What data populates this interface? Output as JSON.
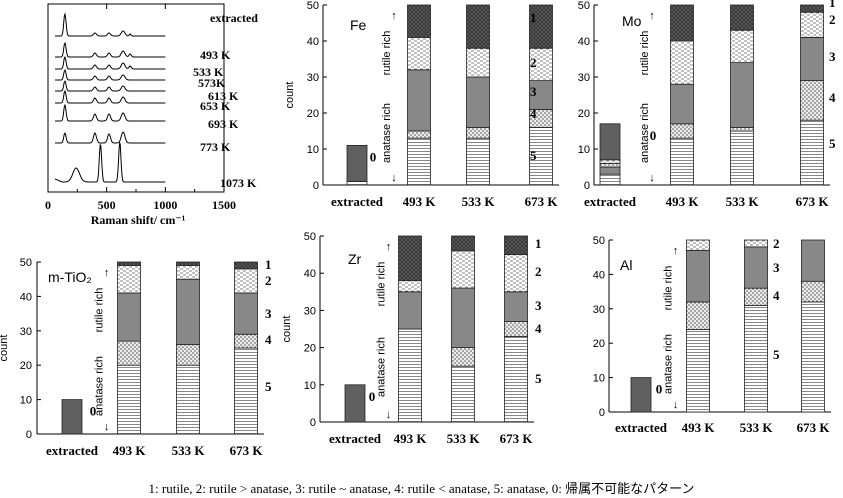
{
  "caption": "1: rutile, 2: rutile > anatase, 3: rutile ~ anatase, 4: rutile < anatase, 5: anatase, 0:  帰属不可能なパターン",
  "colors": {
    "class1": "#5a5a5a",
    "class2": "#ffffff",
    "class3": "#888888",
    "class4": "#e6e6e6",
    "class5": "#ffffff",
    "class0": "#606060"
  },
  "chart_data": [
    {
      "type": "line",
      "title": "",
      "xlabel": "Raman shift/ cm⁻¹",
      "ylabel": "",
      "xlim": [
        0,
        1500
      ],
      "xticks": [
        "0",
        "500",
        "1000",
        "1500"
      ],
      "series": [
        {
          "name": "extracted"
        },
        {
          "name": "493 K"
        },
        {
          "name": "533 K"
        },
        {
          "name": "573K"
        },
        {
          "name": "613 K"
        },
        {
          "name": "653 K"
        },
        {
          "name": "693 K"
        },
        {
          "name": "773 K"
        },
        {
          "name": "1073 K"
        }
      ]
    },
    {
      "type": "bar",
      "stacked": true,
      "label": "Fe",
      "categories": [
        "extracted",
        "493 K",
        "533 K",
        "673 K"
      ],
      "ylabel": "count",
      "ylim": [
        0,
        50
      ],
      "yticks": [
        0,
        10,
        20,
        30,
        40,
        50
      ],
      "extracted": [
        {
          "cls": "5",
          "value": 1
        },
        {
          "cls": "0",
          "value": 10
        }
      ],
      "stacks": [
        [
          {
            "cls": "5",
            "value": 13
          },
          {
            "cls": "4",
            "value": 2
          },
          {
            "cls": "3",
            "value": 17
          },
          {
            "cls": "2",
            "value": 9
          },
          {
            "cls": "1",
            "value": 9
          }
        ],
        [
          {
            "cls": "5",
            "value": 13
          },
          {
            "cls": "4",
            "value": 3
          },
          {
            "cls": "3",
            "value": 14
          },
          {
            "cls": "2",
            "value": 8
          },
          {
            "cls": "1",
            "value": 12
          }
        ],
        [
          {
            "cls": "5",
            "value": 16
          },
          {
            "cls": "4",
            "value": 5
          },
          {
            "cls": "3",
            "value": 8
          },
          {
            "cls": "2",
            "value": 9
          },
          {
            "cls": "1",
            "value": 12
          }
        ]
      ],
      "side_top": "rutile rich",
      "side_bottom": "anatase rich",
      "class_labels": [
        "1",
        "2",
        "3",
        "4",
        "5"
      ],
      "zero_label": "0"
    },
    {
      "type": "bar",
      "stacked": true,
      "label": "Mo",
      "categories": [
        "extracted",
        "493 K",
        "533 K",
        "673 K"
      ],
      "ylabel": "",
      "ylim": [
        0,
        50
      ],
      "yticks": [
        0,
        10,
        20,
        30,
        40,
        50
      ],
      "extracted": [
        {
          "cls": "5",
          "value": 3
        },
        {
          "cls": "3",
          "value": 2
        },
        {
          "cls": "4",
          "value": 1
        },
        {
          "cls": "2",
          "value": 1
        },
        {
          "cls": "0",
          "value": 10
        }
      ],
      "stacks": [
        [
          {
            "cls": "5",
            "value": 13
          },
          {
            "cls": "4",
            "value": 4
          },
          {
            "cls": "3",
            "value": 11
          },
          {
            "cls": "2",
            "value": 12
          },
          {
            "cls": "1",
            "value": 10
          }
        ],
        [
          {
            "cls": "5",
            "value": 15
          },
          {
            "cls": "4",
            "value": 1
          },
          {
            "cls": "3",
            "value": 18
          },
          {
            "cls": "2",
            "value": 9
          },
          {
            "cls": "1",
            "value": 7
          }
        ],
        [
          {
            "cls": "5",
            "value": 18
          },
          {
            "cls": "4",
            "value": 11
          },
          {
            "cls": "3",
            "value": 12
          },
          {
            "cls": "2",
            "value": 7
          },
          {
            "cls": "1",
            "value": 2
          }
        ]
      ],
      "side_top": "rutile rich",
      "side_bottom": "anatase rich",
      "class_labels": [
        "1",
        "2",
        "3",
        "4",
        "5"
      ],
      "zero_label": "0"
    },
    {
      "type": "bar",
      "stacked": true,
      "label": "m-TiO₂",
      "categories": [
        "extracted",
        "493 K",
        "533 K",
        "673 K"
      ],
      "ylabel": "count",
      "ylim": [
        0,
        50
      ],
      "yticks": [
        0,
        10,
        20,
        30,
        40,
        50
      ],
      "extracted": [
        {
          "cls": "0",
          "value": 10
        }
      ],
      "stacks": [
        [
          {
            "cls": "5",
            "value": 20
          },
          {
            "cls": "4",
            "value": 7
          },
          {
            "cls": "3",
            "value": 14
          },
          {
            "cls": "2",
            "value": 8
          },
          {
            "cls": "1",
            "value": 1
          }
        ],
        [
          {
            "cls": "5",
            "value": 20
          },
          {
            "cls": "4",
            "value": 6
          },
          {
            "cls": "3",
            "value": 19
          },
          {
            "cls": "2",
            "value": 4
          },
          {
            "cls": "1",
            "value": 1
          }
        ],
        [
          {
            "cls": "5",
            "value": 25
          },
          {
            "cls": "4",
            "value": 4
          },
          {
            "cls": "3",
            "value": 12
          },
          {
            "cls": "2",
            "value": 7
          },
          {
            "cls": "1",
            "value": 2
          }
        ]
      ],
      "side_top": "rutile rich",
      "side_bottom": "anatase rich",
      "class_labels": [
        "1",
        "2",
        "3",
        "4",
        "5"
      ],
      "zero_label": "0"
    },
    {
      "type": "bar",
      "stacked": true,
      "label": "Zr",
      "categories": [
        "extracted",
        "493 K",
        "533 K",
        "673 K"
      ],
      "ylabel": "count",
      "ylim": [
        0,
        50
      ],
      "yticks": [
        0,
        10,
        20,
        30,
        40,
        50
      ],
      "extracted": [
        {
          "cls": "0",
          "value": 10
        }
      ],
      "stacks": [
        [
          {
            "cls": "5",
            "value": 25
          },
          {
            "cls": "4",
            "value": 0
          },
          {
            "cls": "3",
            "value": 10
          },
          {
            "cls": "2",
            "value": 3
          },
          {
            "cls": "1",
            "value": 12
          }
        ],
        [
          {
            "cls": "5",
            "value": 15
          },
          {
            "cls": "4",
            "value": 5
          },
          {
            "cls": "3",
            "value": 16
          },
          {
            "cls": "2",
            "value": 10
          },
          {
            "cls": "1",
            "value": 4
          }
        ],
        [
          {
            "cls": "5",
            "value": 23
          },
          {
            "cls": "4",
            "value": 4
          },
          {
            "cls": "3",
            "value": 8
          },
          {
            "cls": "2",
            "value": 10
          },
          {
            "cls": "1",
            "value": 5
          }
        ]
      ],
      "side_top": "rutile rich",
      "side_bottom": "anatase rich",
      "class_labels": [
        "1",
        "2",
        "3",
        "4",
        "5"
      ],
      "zero_label": "0"
    },
    {
      "type": "bar",
      "stacked": true,
      "label": "Al",
      "categories": [
        "extracted",
        "493 K",
        "533 K",
        "673 K"
      ],
      "ylabel": "",
      "ylim": [
        0,
        50
      ],
      "yticks": [
        0,
        10,
        20,
        30,
        40,
        50
      ],
      "extracted": [
        {
          "cls": "0",
          "value": 10
        }
      ],
      "stacks": [
        [
          {
            "cls": "5",
            "value": 24
          },
          {
            "cls": "4",
            "value": 8
          },
          {
            "cls": "3",
            "value": 15
          },
          {
            "cls": "2",
            "value": 3
          },
          {
            "cls": "1",
            "value": 0
          }
        ],
        [
          {
            "cls": "5",
            "value": 31
          },
          {
            "cls": "4",
            "value": 5
          },
          {
            "cls": "3",
            "value": 12
          },
          {
            "cls": "2",
            "value": 2
          },
          {
            "cls": "1",
            "value": 0
          }
        ],
        [
          {
            "cls": "5",
            "value": 32
          },
          {
            "cls": "4",
            "value": 6
          },
          {
            "cls": "3",
            "value": 12
          },
          {
            "cls": "2",
            "value": 0
          },
          {
            "cls": "1",
            "value": 0
          }
        ]
      ],
      "side_top": "rutile rich",
      "side_bottom": "anatase rich",
      "class_labels": [
        "2",
        "3",
        "4",
        "5"
      ],
      "zero_label": "0"
    }
  ]
}
